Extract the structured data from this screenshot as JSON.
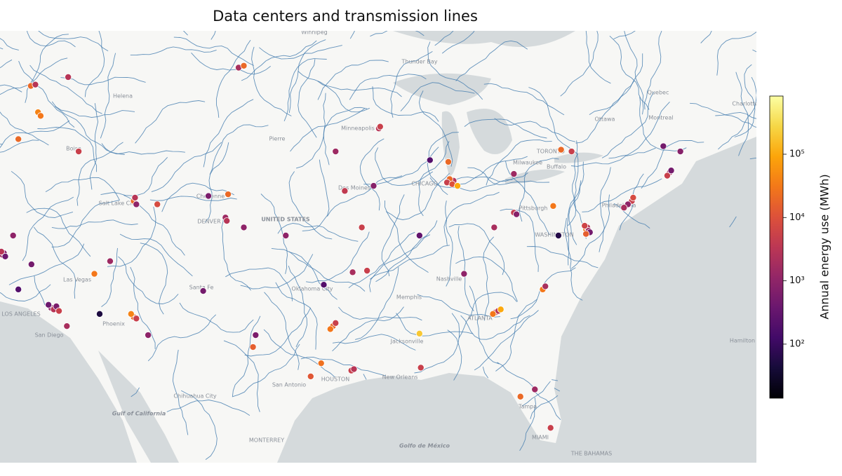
{
  "chart_data": {
    "type": "scatter",
    "title": "Data centers and transmission lines",
    "xlim": [
      -122.2,
      -64.5
    ],
    "ylim": [
      23.3,
      50.1
    ],
    "colorbar": {
      "label": "Annual energy use (MWh)",
      "log": true,
      "colormap": "inferno",
      "clim": [
        14,
        830000
      ],
      "ticks": [
        {
          "value": 100,
          "label": "10²"
        },
        {
          "value": 1000,
          "label": "10³"
        },
        {
          "value": 10000,
          "label": "10⁴"
        },
        {
          "value": 100000,
          "label": "10⁵"
        }
      ]
    },
    "series": [
      {
        "name": "Data centers",
        "x": [
          -119.85,
          -119.5,
          -119.3,
          -119.1,
          -120.8,
          -116.2,
          -117.0,
          -112.0,
          -111.9,
          -111.8,
          -110.2,
          -104.8,
          -105.0,
          -104.9,
          -106.3,
          -103.6,
          -115.0,
          -113.8,
          -122.0,
          -121.9,
          -121.8,
          -122.1,
          -121.2,
          -119.8,
          -118.3,
          -118.1,
          -117.9,
          -117.7,
          -118.5,
          -120.8,
          -117.1,
          -112.0,
          -111.8,
          -112.2,
          -110.9,
          -114.6,
          -106.7,
          -104.0,
          -103.6,
          -102.9,
          -102.7,
          -93.3,
          -93.2,
          -96.6,
          -93.7,
          -95.9,
          -94.6,
          -100.4,
          -97.5,
          -95.3,
          -94.2,
          -96.8,
          -96.6,
          -97.0,
          -95.4,
          -95.2,
          -97.7,
          -98.5,
          -90.2,
          -90.1,
          -90.2,
          -87.6,
          -87.9,
          -88.1,
          -87.7,
          -87.3,
          -88.0,
          -89.4,
          -83.0,
          -79.4,
          -78.6,
          -83.0,
          -82.8,
          -80.0,
          -84.5,
          -77.5,
          -77.4,
          -77.3,
          -77.6,
          -77.2,
          -77.5,
          -74.0,
          -74.3,
          -74.6,
          -73.9,
          -71.1,
          -71.3,
          -71.0,
          -84.4,
          -84.2,
          -84.0,
          -84.6,
          -80.8,
          -80.6,
          -82.5,
          -80.2,
          -81.4,
          -86.8,
          -79.6,
          -71.6,
          -70.3
        ],
        "y": [
          47.23,
          47.3,
          45.8,
          45.6,
          44.3,
          43.6,
          47.7,
          40.7,
          40.9,
          40.5,
          40.5,
          41.1,
          39.7,
          39.5,
          41.0,
          39.1,
          36.2,
          37.0,
          37.4,
          37.5,
          37.3,
          37.6,
          38.6,
          36.8,
          34.0,
          33.9,
          34.1,
          33.8,
          34.2,
          35.2,
          32.8,
          33.4,
          33.3,
          33.6,
          32.2,
          33.6,
          35.1,
          48.2,
          48.3,
          31.4,
          32.2,
          44.9,
          45.0,
          43.6,
          41.6,
          41.3,
          39.1,
          38.6,
          35.5,
          36.3,
          36.4,
          32.8,
          33.0,
          32.6,
          29.8,
          29.9,
          30.3,
          29.4,
          32.3,
          30.0,
          38.6,
          41.9,
          42.0,
          41.8,
          41.7,
          41.6,
          43.0,
          43.1,
          42.3,
          43.7,
          43.6,
          40.0,
          39.9,
          40.4,
          39.1,
          39.0,
          39.1,
          38.9,
          39.2,
          38.8,
          38.7,
          40.7,
          40.5,
          40.3,
          40.9,
          42.4,
          42.2,
          42.5,
          33.7,
          33.8,
          33.9,
          33.6,
          35.2,
          35.4,
          28.0,
          25.8,
          28.5,
          36.2,
          38.6,
          43.9,
          43.6
        ],
        "values": [
          20000,
          3000,
          40000,
          30000,
          20000,
          5000,
          3000,
          20000,
          3000,
          1000,
          8000,
          20000,
          1500,
          3000,
          600,
          1000,
          30000,
          1500,
          1500,
          700,
          400,
          3000,
          1000,
          500,
          1000,
          3000,
          600,
          5000,
          400,
          200,
          2000,
          20000,
          5000,
          40000,
          1000,
          50,
          500,
          2000,
          20000,
          15000,
          600,
          3000,
          5000,
          1500,
          800,
          4000,
          5000,
          1000,
          200,
          2000,
          5000,
          20000,
          5000,
          30000,
          5000,
          3000,
          25000,
          12000,
          200000,
          5000,
          300,
          3000,
          20000,
          5000,
          10000,
          100000,
          20000,
          200,
          1500,
          20000,
          5000,
          4000,
          800,
          30000,
          2000,
          30000,
          3000,
          1500,
          6000,
          500,
          15000,
          5000,
          1000,
          2000,
          8000,
          2000,
          5000,
          500,
          5000,
          3000,
          100000,
          30000,
          30000,
          2000,
          20000,
          5000,
          1500,
          1000,
          60,
          500,
          800
        ]
      }
    ],
    "place_labels": [
      "Winnipeg",
      "Thunder Bay",
      "Quebec",
      "Montreal",
      "Ottawa",
      "TORONTO",
      "Buffalo",
      "Charlotte",
      "Hamilton",
      "Milwaukee",
      "CHICAGO",
      "Minneapolis",
      "Des Moines",
      "Pierre",
      "Cheyenne",
      "Salt Lake City",
      "DENVER",
      "UNITED STATES",
      "Las Vegas",
      "LOS ANGELES",
      "San Diego",
      "Phoenix",
      "Santa Fe",
      "Oklahoma City",
      "Memphis",
      "Nashville",
      "ATLANTA",
      "Jacksonville",
      "New Orleans",
      "HOUSTON",
      "San Antonio",
      "Tampa",
      "MIAMI",
      "WASHINGTON",
      "Philadelphia",
      "Pittsburgh",
      "Chihuahua City",
      "MONTERREY",
      "Gulf of California",
      "Golfo de México",
      "THE BAHAMAS",
      "Helena",
      "Boise"
    ]
  }
}
